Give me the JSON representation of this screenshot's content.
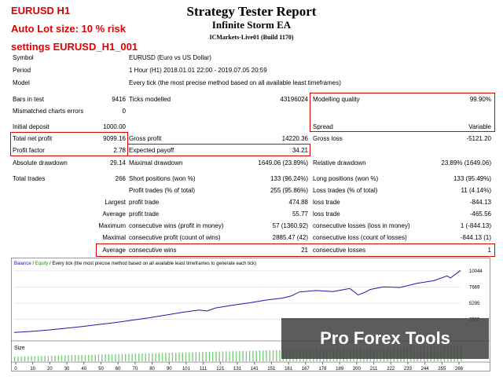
{
  "overlay": {
    "line1": "EURUSD H1",
    "line2": "Auto Lot size: 10 % risk",
    "line3": "settings EURUSD_H1_001",
    "banner": "Pro Forex Tools"
  },
  "header": {
    "title": "Strategy Tester Report",
    "subtitle": "Infinite Storm EA",
    "server": "ICMarkets-Live01 (Build 1170)"
  },
  "info": {
    "symbol_label": "Symbol",
    "symbol_value": "EURUSD (Euro vs US Dollar)",
    "period_label": "Period",
    "period_value": "1 Hour (H1) 2018.01.01 22:00 - 2019.07.05 20:59",
    "model_label": "Model",
    "model_value": "Every tick (the most precise method based on all available least timeframes)"
  },
  "stats": {
    "bars_label": "Bars in test",
    "bars_value": "9416",
    "ticks_label": "Ticks modelled",
    "ticks_value": "43196024",
    "quality_label": "Modelling quality",
    "quality_value": "99.90%",
    "mismatch_label": "Mismatched charts errors",
    "mismatch_value": "0",
    "deposit_label": "Initial deposit",
    "deposit_value": "1000.00",
    "spread_label": "Spread",
    "spread_value": "Variable",
    "netprofit_label": "Total net profit",
    "netprofit_value": "9099.16",
    "grossprofit_label": "Gross profit",
    "grossprofit_value": "14220.36",
    "grossloss_label": "Gross loss",
    "grossloss_value": "-5121.20",
    "pf_label": "Profit factor",
    "pf_value": "2.78",
    "payoff_label": "Expected payoff",
    "payoff_value": "34.21",
    "absdd_label": "Absolute drawdown",
    "absdd_value": "29.14",
    "maxdd_label": "Maximal drawdown",
    "maxdd_value": "1649.06 (23.89%)",
    "reldd_label": "Relative drawdown",
    "reldd_value": "23.89% (1649.06)",
    "trades_label": "Total trades",
    "trades_value": "266",
    "short_label": "Short positions (won %)",
    "short_value": "133 (96.24%)",
    "long_label": "Long positions (won %)",
    "long_value": "133 (95.49%)",
    "pt_label": "Profit trades (% of total)",
    "pt_value": "255 (95.86%)",
    "lt_label": "Loss trades (% of total)",
    "lt_value": "11 (4.14%)",
    "largest_label": "Largest",
    "largest_pt_label": "profit trade",
    "largest_pt_value": "474.88",
    "largest_lt_label": "loss trade",
    "largest_lt_value": "-844.13",
    "average_label": "Average",
    "average_pt_label": "profit trade",
    "average_pt_value": "55.77",
    "average_lt_label": "loss trade",
    "average_lt_value": "-465.56",
    "maximum_label": "Maximum",
    "maxwins_label": "consecutive wins (profit in money)",
    "maxwins_value": "57 (1360.92)",
    "maxlosses_label": "consecutive losses (loss in money)",
    "maxlosses_value": "1 (-844.13)",
    "maximal_label": "Maximal",
    "mxprofit_label": "consecutive profit (count of wins)",
    "mxprofit_value": "2885.47 (42)",
    "mxloss_label": "consecutive loss (count of losses)",
    "mxloss_value": "-844.13 (1)",
    "avg2_label": "Average",
    "avgwins_label": "consecutive wins",
    "avgwins_value": "21",
    "avglosses_label": "consecutive losses",
    "avglosses_value": "1"
  },
  "chart": {
    "legend_balance": "Balance",
    "legend_sep": " / ",
    "legend_equity": "Equity",
    "legend_rest": " / Every tick (the most precise method based on all available least timeframes to generate each tick)",
    "size_label": "Size",
    "y_ticks": [
      "10044",
      "7669",
      "5295",
      "2920"
    ],
    "x_ticks": [
      "0",
      "10",
      "20",
      "30",
      "40",
      "50",
      "60",
      "70",
      "80",
      "90",
      "101",
      "111",
      "121",
      "131",
      "141",
      "151",
      "161",
      "167",
      "178",
      "189",
      "200",
      "211",
      "222",
      "233",
      "244",
      "255",
      "266"
    ],
    "balance_color": "#1a1aa8",
    "equity_color": "#00a000"
  },
  "chart_data": {
    "type": "line",
    "title": "",
    "xlabel": "",
    "ylabel": "",
    "ylim": [
      0,
      10600
    ],
    "xlim": [
      0,
      266
    ],
    "series": [
      {
        "name": "Balance",
        "x": [
          0,
          10,
          20,
          30,
          40,
          50,
          60,
          70,
          80,
          90,
          100,
          110,
          115,
          120,
          130,
          140,
          150,
          160,
          165,
          170,
          180,
          190,
          200,
          205,
          210,
          212,
          220,
          230,
          240,
          250,
          258,
          260,
          266
        ],
        "values": [
          1000,
          1150,
          1350,
          1600,
          1850,
          2150,
          2450,
          2800,
          3150,
          3550,
          3950,
          4300,
          4150,
          4600,
          5000,
          5350,
          5750,
          6050,
          6350,
          6950,
          7150,
          7000,
          7450,
          6500,
          7000,
          7300,
          7700,
          7600,
          8200,
          8600,
          9300,
          9000,
          10099
        ]
      }
    ]
  }
}
